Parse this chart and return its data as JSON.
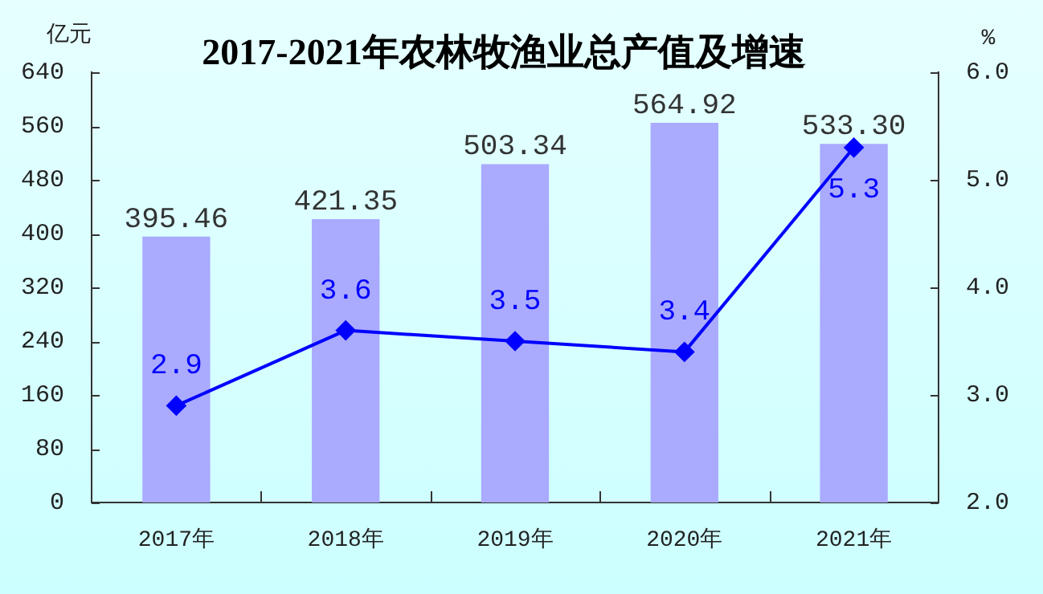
{
  "chart_data": {
    "type": "bar",
    "title": "2017-2021年农林牧渔业总产值及增速",
    "ylabel": "亿元",
    "y2label": "%",
    "categories": [
      "2017年",
      "2018年",
      "2019年",
      "2020年",
      "2021年"
    ],
    "series": [
      {
        "color": "#aaaaff",
        "values": [
          395.46,
          421.35,
          503.34,
          564.92,
          533.3
        ],
        "value_labels": [
          "395.46",
          "421.35",
          "503.34",
          "564.92",
          "533.30"
        ]
      },
      {
        "type": "line",
        "axis": "y2",
        "color": "#0000ff",
        "values": [
          2.9,
          3.6,
          3.5,
          3.4,
          5.3
        ],
        "value_labels": [
          "2.9",
          "3.6",
          "3.5",
          "3.4",
          "5.3"
        ]
      }
    ],
    "marker": "diamond",
    "ylim": [
      0,
      640
    ],
    "yticks": [
      0,
      80,
      160,
      240,
      320,
      400,
      480,
      560,
      640
    ],
    "y2lim": [
      2,
      6
    ],
    "y2ticks": [
      {
        "value": 2,
        "label": "2.0"
      },
      {
        "value": 3,
        "label": "3.0"
      },
      {
        "value": 4,
        "label": "4.0"
      },
      {
        "value": 5,
        "label": "5.0"
      },
      {
        "value": 6,
        "label": "6.0"
      }
    ]
  }
}
